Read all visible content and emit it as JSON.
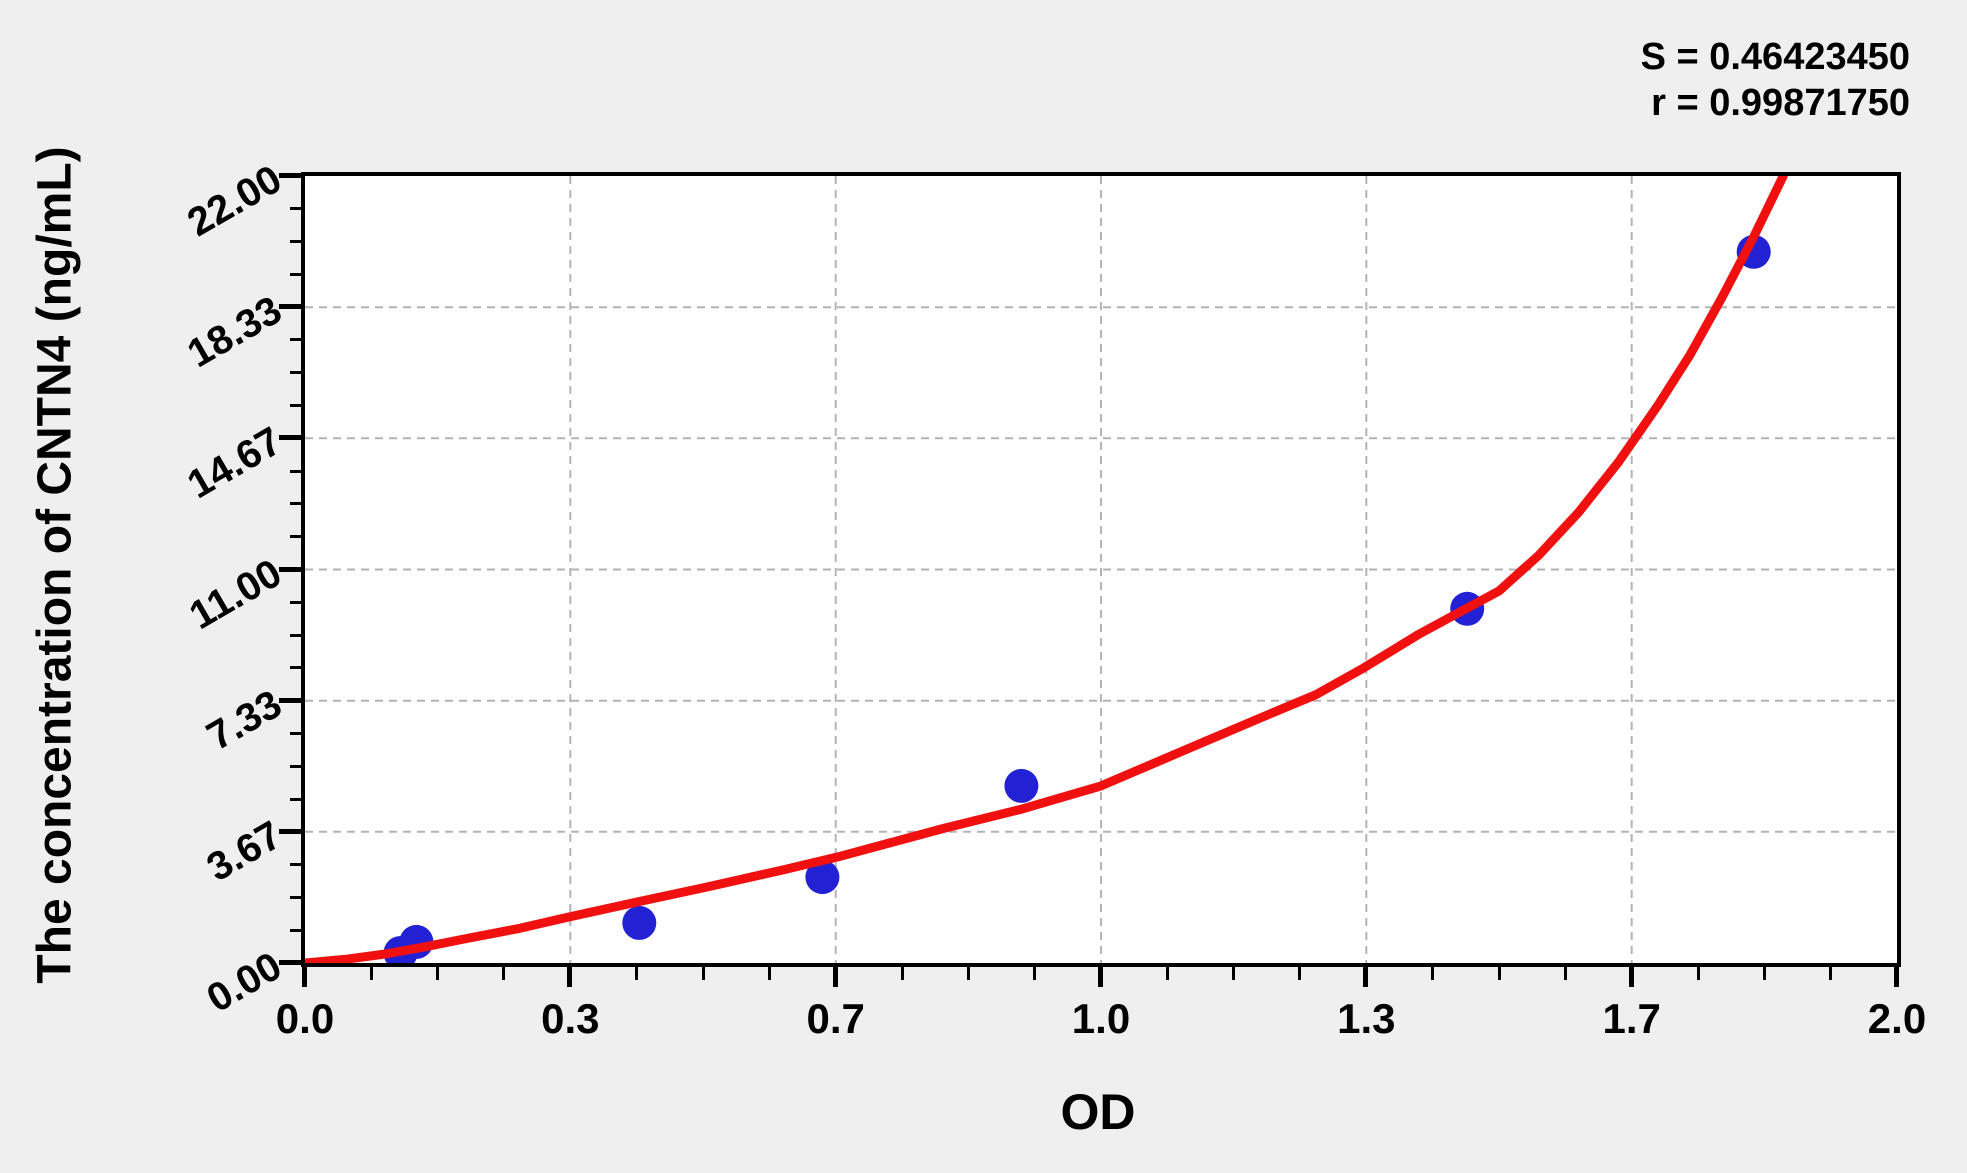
{
  "figure": {
    "background_color": "#efefef",
    "plot_background_color": "#ffffff",
    "axis_color": "#000000"
  },
  "chart_data": {
    "type": "scatter",
    "title": "",
    "xlabel": "OD",
    "ylabel": "The concentration of CNTN4 (ng/mL)",
    "xlim": [
      0.0,
      2.0
    ],
    "ylim": [
      0.0,
      22.0
    ],
    "grid": {
      "show": true,
      "style": "dashed",
      "color": "#b3b3b3",
      "at": "major-ticks"
    },
    "minor_ticks_between_majors": 3,
    "x_ticks": [
      {
        "value": 0.0,
        "label": "0.0"
      },
      {
        "value": 0.3333,
        "label": "0.3"
      },
      {
        "value": 0.6667,
        "label": "0.7"
      },
      {
        "value": 1.0,
        "label": "1.0"
      },
      {
        "value": 1.3333,
        "label": "1.3"
      },
      {
        "value": 1.6667,
        "label": "1.7"
      },
      {
        "value": 2.0,
        "label": "2.0"
      }
    ],
    "y_ticks": [
      {
        "value": 0.0,
        "label": "0.00"
      },
      {
        "value": 3.6667,
        "label": "3.67"
      },
      {
        "value": 7.3333,
        "label": "7.33"
      },
      {
        "value": 11.0,
        "label": "11.00"
      },
      {
        "value": 14.6667,
        "label": "14.67"
      },
      {
        "value": 18.3333,
        "label": "18.33"
      },
      {
        "value": 22.0,
        "label": "22.00"
      }
    ],
    "series": [
      {
        "name": "standard-points",
        "type": "scatter",
        "color": "#2222d4",
        "marker_radius_px": 17,
        "points": [
          {
            "od": 0.12,
            "conc": 0.28
          },
          {
            "od": 0.14,
            "conc": 0.59
          },
          {
            "od": 0.42,
            "conc": 1.12
          },
          {
            "od": 0.65,
            "conc": 2.4
          },
          {
            "od": 0.9,
            "conc": 4.95
          },
          {
            "od": 1.46,
            "conc": 9.9
          },
          {
            "od": 1.82,
            "conc": 19.88
          }
        ]
      },
      {
        "name": "fitted-curve",
        "type": "line",
        "color": "#f01010",
        "stroke_width_px": 9,
        "points": [
          [
            0.0,
            0.0
          ],
          [
            0.05,
            0.1
          ],
          [
            0.1,
            0.25
          ],
          [
            0.15,
            0.45
          ],
          [
            0.2,
            0.67
          ],
          [
            0.27,
            0.97
          ],
          [
            0.33,
            1.28
          ],
          [
            0.42,
            1.72
          ],
          [
            0.5,
            2.1
          ],
          [
            0.6,
            2.6
          ],
          [
            0.67,
            2.97
          ],
          [
            0.75,
            3.45
          ],
          [
            0.8,
            3.75
          ],
          [
            0.9,
            4.3
          ],
          [
            1.0,
            4.95
          ],
          [
            1.1,
            5.9
          ],
          [
            1.2,
            6.85
          ],
          [
            1.27,
            7.5
          ],
          [
            1.33,
            8.25
          ],
          [
            1.4,
            9.2
          ],
          [
            1.46,
            9.92
          ],
          [
            1.5,
            10.4
          ],
          [
            1.55,
            11.4
          ],
          [
            1.6,
            12.6
          ],
          [
            1.65,
            14.0
          ],
          [
            1.7,
            15.6
          ],
          [
            1.74,
            17.0
          ],
          [
            1.78,
            18.6
          ],
          [
            1.82,
            20.3
          ],
          [
            1.857,
            22.0
          ]
        ]
      }
    ],
    "annotations": [
      {
        "text": "S = 0.46423450",
        "position": "top-right"
      },
      {
        "text": "r = 0.99871750",
        "position": "top-right"
      }
    ]
  }
}
